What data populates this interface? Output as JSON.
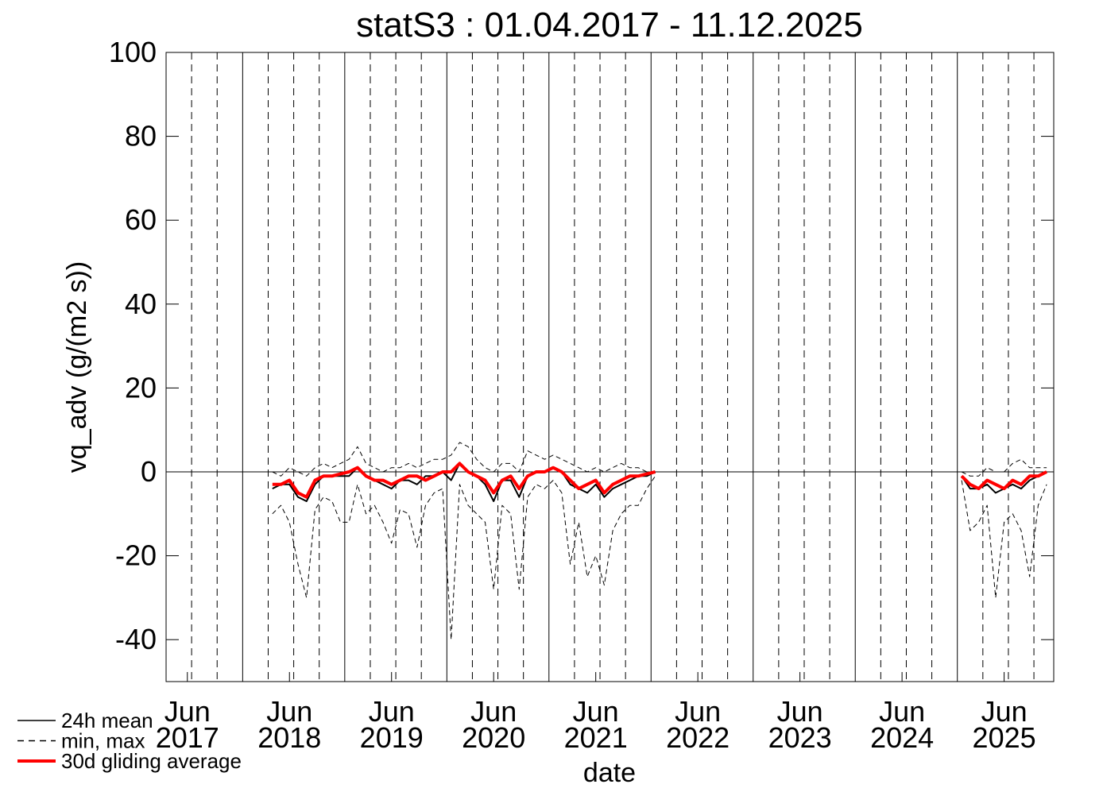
{
  "chart_data": {
    "type": "line",
    "title": "statS3 : 01.04.2017 - 11.12.2025",
    "x_label": "date",
    "y_label": "vq_adv (g/(m2 s))",
    "xlim": [
      "2017-04-01",
      "2025-12-11"
    ],
    "ylim": [
      -50,
      100
    ],
    "yticks": [
      -40,
      -20,
      0,
      20,
      40,
      60,
      80,
      100
    ],
    "xticks": [
      {
        "value": "2017-06",
        "label": "Jun 2017"
      },
      {
        "value": "2018-06",
        "label": "Jun 2018"
      },
      {
        "value": "2019-06",
        "label": "Jun 2019"
      },
      {
        "value": "2020-06",
        "label": "Jun 2020"
      },
      {
        "value": "2021-06",
        "label": "Jun 2021"
      },
      {
        "value": "2022-06",
        "label": "Jun 2022"
      },
      {
        "value": "2023-06",
        "label": "Jun 2023"
      },
      {
        "value": "2024-06",
        "label": "Jun 2024"
      },
      {
        "value": "2025-06",
        "label": "Jun 2025"
      }
    ],
    "xgrid_major": [
      "2018-01-01",
      "2019-01-01",
      "2020-01-01",
      "2021-01-01",
      "2022-01-01",
      "2023-01-01",
      "2024-01-01",
      "2025-01-01"
    ],
    "xgrid_minor": [
      "2017-07-01",
      "2017-10-01",
      "2018-04-01",
      "2018-07-01",
      "2018-10-01",
      "2019-04-01",
      "2019-07-01",
      "2019-10-01",
      "2020-04-01",
      "2020-07-01",
      "2020-10-01",
      "2021-04-01",
      "2021-07-01",
      "2021-10-01",
      "2022-04-01",
      "2022-07-01",
      "2022-10-01",
      "2023-04-01",
      "2023-07-01",
      "2023-10-01",
      "2024-04-01",
      "2024-07-01",
      "2024-10-01",
      "2025-04-01",
      "2025-07-01",
      "2025-10-01"
    ],
    "zero_line": true,
    "legend": "bottom-left",
    "x": [
      "2018-04",
      "2018-05",
      "2018-06",
      "2018-07",
      "2018-08",
      "2018-09",
      "2018-10",
      "2018-11",
      "2018-12",
      "2019-01",
      "2019-02",
      "2019-03",
      "2019-04",
      "2019-05",
      "2019-06",
      "2019-07",
      "2019-08",
      "2019-09",
      "2019-10",
      "2019-11",
      "2019-12",
      "2020-01",
      "2020-02",
      "2020-03",
      "2020-04",
      "2020-05",
      "2020-06",
      "2020-07",
      "2020-08",
      "2020-09",
      "2020-10",
      "2020-11",
      "2020-12",
      "2021-01",
      "2021-02",
      "2021-03",
      "2021-04",
      "2021-05",
      "2021-06",
      "2021-07",
      "2021-08",
      "2021-09",
      "2021-10",
      "2021-11",
      "2021-12",
      "2022-01",
      "2023-06",
      "2025-01",
      "2025-02",
      "2025-03",
      "2025-04",
      "2025-05",
      "2025-06",
      "2025-07",
      "2025-08",
      "2025-09",
      "2025-10",
      "2025-11"
    ],
    "series": [
      {
        "name": "24h mean",
        "color": "#000000",
        "dash": false,
        "width": 2,
        "values": [
          -4,
          -3,
          -3,
          -6,
          -7,
          -3,
          -1,
          -1,
          -1,
          -1,
          1,
          -1,
          -2,
          -3,
          -4,
          -2,
          -2,
          -3,
          -1,
          -1,
          0,
          -2,
          2,
          0,
          -1,
          -3,
          -7,
          -2,
          -2,
          -6,
          -1,
          0,
          0,
          1,
          0,
          -3,
          -4,
          -5,
          -3,
          -6,
          -4,
          -3,
          -2,
          -1,
          -1,
          0,
          null,
          -1,
          -4,
          -4,
          -3,
          -5,
          -4,
          -3,
          -4,
          -2,
          -1,
          0
        ]
      },
      {
        "name": "min, max",
        "color": "#000000",
        "dash": true,
        "width": 1,
        "values": [
          -10,
          -8,
          -12,
          -22,
          -30,
          -9,
          -6,
          -7,
          -12,
          -12,
          -3,
          -10,
          -8,
          -12,
          -17,
          -9,
          -10,
          -18,
          -8,
          -5,
          -4,
          -40,
          -3,
          -8,
          -10,
          -12,
          -28,
          -8,
          -10,
          -28,
          -6,
          -3,
          -4,
          -2,
          -5,
          -22,
          -12,
          -25,
          -20,
          -27,
          -14,
          -10,
          -8,
          -8,
          -4,
          -1,
          null,
          -2,
          -14,
          -12,
          -8,
          -30,
          -12,
          -10,
          -14,
          -25,
          -8,
          -3
        ],
        "values_max": [
          0,
          -1,
          1,
          0,
          -1,
          1,
          2,
          1,
          2,
          3,
          6,
          2,
          1,
          0,
          1,
          1,
          2,
          1,
          2,
          3,
          3,
          4,
          7,
          6,
          3,
          1,
          0,
          2,
          2,
          0,
          5,
          4,
          3,
          4,
          3,
          2,
          1,
          0,
          1,
          0,
          1,
          2,
          1,
          1,
          0,
          0,
          null,
          0,
          -1,
          -1,
          1,
          0,
          0,
          2,
          3,
          1,
          1,
          1
        ]
      },
      {
        "name": "30d gliding average",
        "color": "#ff0000",
        "dash": false,
        "width": 4,
        "values": [
          -3,
          -3,
          -2,
          -5,
          -6,
          -2,
          -1,
          -1,
          -0.5,
          0,
          1,
          -1,
          -2,
          -2,
          -3,
          -2,
          -1,
          -1,
          -2,
          -1,
          0,
          0,
          2,
          0,
          -1,
          -2,
          -5,
          -2,
          -1,
          -4,
          -1,
          0,
          0,
          1,
          0,
          -2,
          -4,
          -3,
          -2,
          -5,
          -3,
          -2,
          -1,
          -1,
          -0.5,
          0,
          null,
          -1,
          -3,
          -4,
          -2,
          -3,
          -4,
          -2,
          -3,
          -1,
          -1,
          0
        ]
      }
    ]
  }
}
